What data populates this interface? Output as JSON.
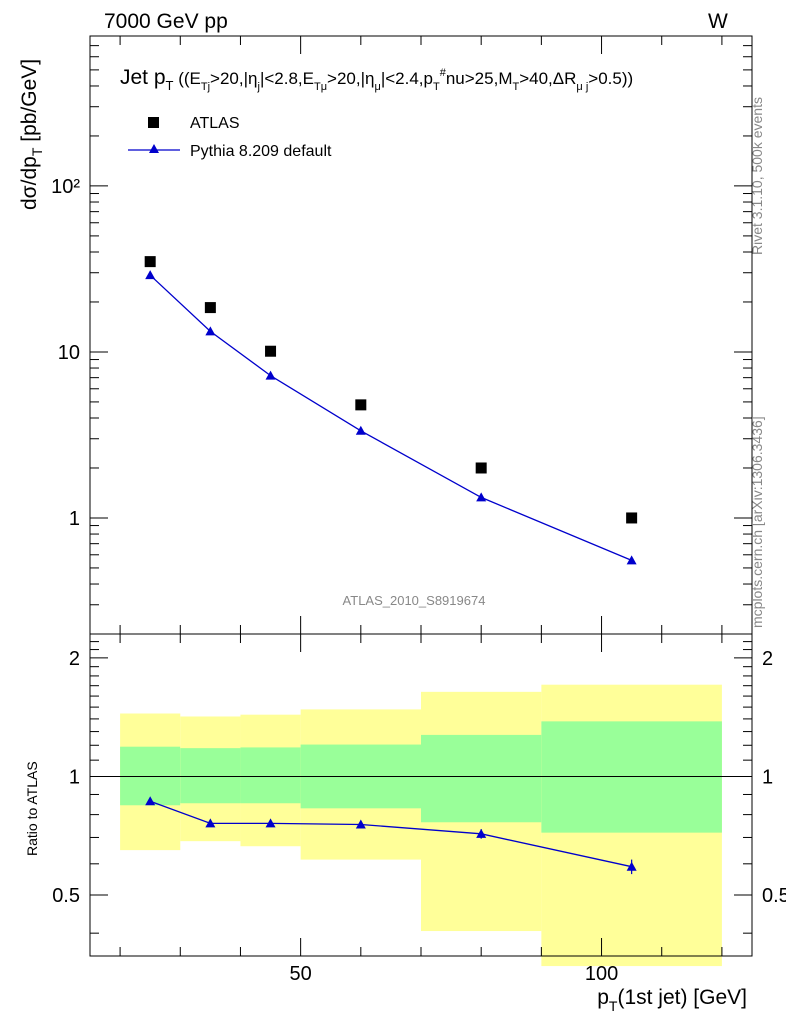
{
  "header": {
    "left": "7000 GeV pp",
    "right": "W"
  },
  "side_text": {
    "rivet": "Rivet 3.1.10,  500k events",
    "mcplots": "mcplots.cern.ch [arXiv:1306.3436]"
  },
  "watermark": "ATLAS_2010_S8919674",
  "colors": {
    "mc": "#0000cc",
    "data": "#000000",
    "band_inner": "#99ff99",
    "band_outer": "#ffff99"
  },
  "chart_data": [
    {
      "type": "scatter",
      "title": "Jet pT ((ETj>20,|ηj|<2.8,ETμ>20,|ημ|<2.4,pTνu>25,MT>40,ΔRμj>0.5))",
      "xlabel": "pT(1st jet) [GeV]",
      "ylabel": "dσ/dpT [pb/GeV]",
      "xlim": [
        15,
        125
      ],
      "ylim": [
        0.2,
        800
      ],
      "yscale": "log",
      "ytick_labels": [
        "1",
        "10",
        "10²"
      ],
      "legend": {
        "position": "top-left",
        "entries": [
          "ATLAS",
          "Pythia 8.209 default"
        ]
      },
      "x": [
        25,
        35,
        45,
        60,
        80,
        105
      ],
      "series": [
        {
          "name": "ATLAS",
          "marker": "square",
          "values": [
            35,
            18.5,
            10.1,
            4.8,
            2.0,
            1.0
          ]
        },
        {
          "name": "Pythia 8.209 default",
          "marker": "triangle",
          "line": true,
          "values": [
            29,
            13.3,
            7.2,
            3.35,
            1.33,
            0.555
          ]
        }
      ]
    },
    {
      "type": "line",
      "ylabel": "Ratio to ATLAS",
      "xlabel": "pT(1st jet) [GeV]",
      "xlim": [
        15,
        125
      ],
      "ylim": [
        0.35,
        2.3
      ],
      "yscale": "log",
      "xticks": [
        50,
        100
      ],
      "yticks": [
        0.5,
        1,
        2
      ],
      "reference": 1,
      "bands": {
        "edges": [
          20,
          30,
          40,
          50,
          70,
          90,
          120
        ],
        "inner_lo": [
          0.845,
          0.855,
          0.855,
          0.83,
          0.765,
          0.72
        ],
        "inner_hi": [
          1.19,
          1.18,
          1.185,
          1.205,
          1.275,
          1.38
        ],
        "outer_lo": [
          0.65,
          0.685,
          0.665,
          0.615,
          0.405,
          0.33
        ],
        "outer_hi": [
          1.445,
          1.42,
          1.435,
          1.48,
          1.64,
          1.71
        ]
      },
      "series": [
        {
          "name": "Pythia 8.209 default",
          "x": [
            25,
            35,
            45,
            60,
            80,
            105
          ],
          "values": [
            0.865,
            0.76,
            0.76,
            0.755,
            0.715,
            0.59
          ],
          "errors": [
            0.008,
            0.008,
            0.008,
            0.01,
            0.02,
            0.025
          ]
        }
      ]
    }
  ]
}
